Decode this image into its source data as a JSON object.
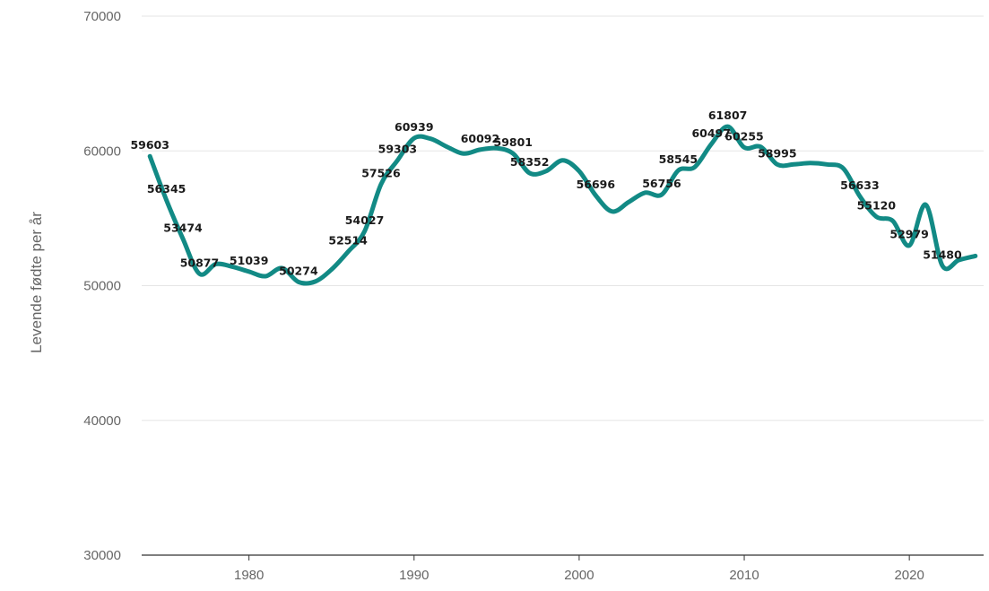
{
  "chart_data": {
    "type": "line",
    "title": "",
    "xlabel": "",
    "ylabel": "Levende fødte per år",
    "xlim": [
      1973.5,
      2024.5
    ],
    "ylim": [
      30000,
      70000
    ],
    "y_ticks": [
      30000,
      40000,
      50000,
      60000,
      70000
    ],
    "x_ticks": [
      1980,
      1990,
      2000,
      2010,
      2020
    ],
    "grid": "horizontal",
    "legend": "none",
    "line_color": "#128a85",
    "series": [
      {
        "x": [
          1974,
          1975,
          1976,
          1977,
          1978,
          1979,
          1980,
          1981,
          1982,
          1983,
          1984,
          1985,
          1986,
          1987,
          1988,
          1989,
          1990,
          1991,
          1992,
          1993,
          1994,
          1995,
          1996,
          1997,
          1998,
          1999,
          2000,
          2001,
          2002,
          2003,
          2004,
          2005,
          2006,
          2007,
          2008,
          2009,
          2010,
          2011,
          2012,
          2013,
          2014,
          2015,
          2016,
          2017,
          2018,
          2019,
          2020,
          2021,
          2022,
          2023,
          2024
        ],
        "values": [
          59603,
          56345,
          53474,
          50877,
          51600,
          51400,
          51039,
          50700,
          51300,
          50274,
          50300,
          51200,
          52514,
          54027,
          57526,
          59303,
          60939,
          60900,
          60300,
          59800,
          60092,
          60200,
          59801,
          58352,
          58500,
          59300,
          58500,
          56696,
          55500,
          56200,
          56900,
          56756,
          58545,
          58800,
          60497,
          61807,
          60255,
          60300,
          58995,
          59000,
          59100,
          59000,
          58700,
          56633,
          55120,
          54800,
          52979,
          56000,
          51480,
          51900,
          52200
        ],
        "labels": [
          {
            "x": 1974,
            "text": "59603"
          },
          {
            "x": 1975,
            "text": "56345"
          },
          {
            "x": 1976,
            "text": "53474"
          },
          {
            "x": 1977,
            "text": "50877"
          },
          {
            "x": 1980,
            "text": "51039"
          },
          {
            "x": 1983,
            "text": "50274"
          },
          {
            "x": 1986,
            "text": "52514"
          },
          {
            "x": 1987,
            "text": "54027"
          },
          {
            "x": 1988,
            "text": "57526"
          },
          {
            "x": 1989,
            "text": "59303"
          },
          {
            "x": 1990,
            "text": "60939"
          },
          {
            "x": 1994,
            "text": "60092"
          },
          {
            "x": 1996,
            "text": "59801"
          },
          {
            "x": 1997,
            "text": "58352"
          },
          {
            "x": 2001,
            "text": "56696"
          },
          {
            "x": 2005,
            "text": "56756"
          },
          {
            "x": 2006,
            "text": "58545"
          },
          {
            "x": 2008,
            "text": "60497"
          },
          {
            "x": 2009,
            "text": "61807"
          },
          {
            "x": 2010,
            "text": "60255"
          },
          {
            "x": 2012,
            "text": "58995"
          },
          {
            "x": 2017,
            "text": "56633"
          },
          {
            "x": 2018,
            "text": "55120"
          },
          {
            "x": 2020,
            "text": "52979"
          },
          {
            "x": 2022,
            "text": "51480"
          }
        ]
      }
    ]
  }
}
